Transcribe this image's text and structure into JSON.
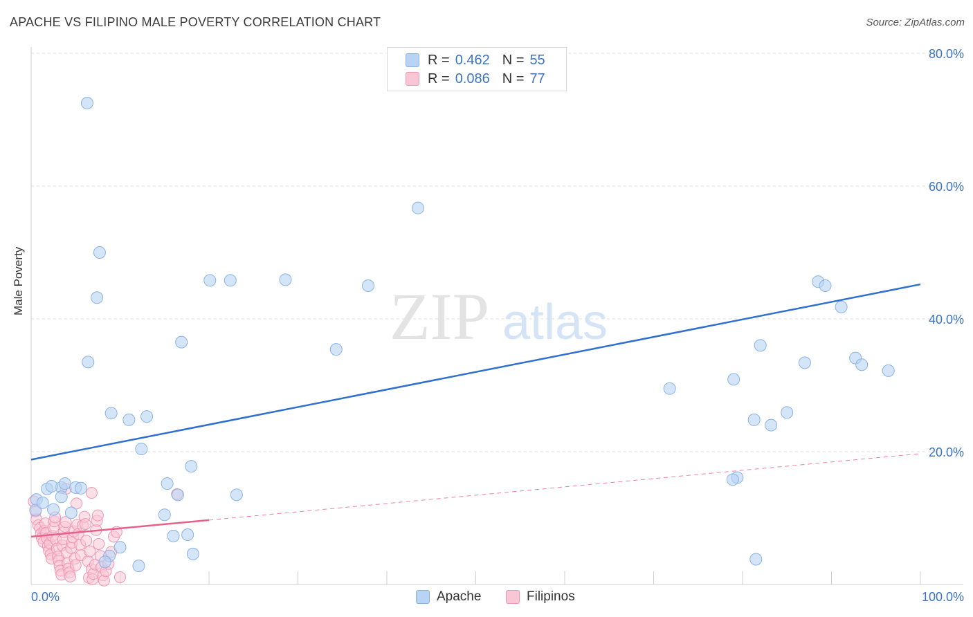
{
  "header": {
    "title": "APACHE VS FILIPINO MALE POVERTY CORRELATION CHART",
    "source": "Source: ZipAtlas.com"
  },
  "watermark": {
    "zip": "ZIP",
    "atlas": "atlas"
  },
  "legend": {
    "apache": {
      "r_label": "R =",
      "r_value": "0.462",
      "n_label": "N =",
      "n_value": "55"
    },
    "filipinos": {
      "r_label": "R =",
      "r_value": "0.086",
      "n_label": "N =",
      "n_value": "77"
    }
  },
  "bottom_legend": {
    "apache": "Apache",
    "filipinos": "Filipinos"
  },
  "colors": {
    "apache_fill": "#b8d3f3",
    "apache_stroke": "#8ab2e6",
    "apache_line": "#2f6fcf",
    "filipino_fill": "#f9c6d6",
    "filipino_stroke": "#f095b3",
    "filipino_line": "#e8608a",
    "tick_text": "#3a72c8",
    "grid": "#dcdcdc"
  },
  "chart_data": {
    "type": "scatter",
    "title": "APACHE VS FILIPINO MALE POVERTY CORRELATION CHART",
    "xlabel": "",
    "ylabel": "Male Poverty",
    "xlim": [
      0,
      100
    ],
    "ylim": [
      0,
      80
    ],
    "x_tick_labels": [
      "0.0%",
      "100.0%"
    ],
    "y_ticks": [
      20,
      40,
      60,
      80
    ],
    "y_tick_labels": [
      "20.0%",
      "40.0%",
      "60.0%",
      "80.0%"
    ],
    "series": [
      {
        "name": "Apache",
        "r": 0.462,
        "n": 55,
        "trend": {
          "x": [
            0,
            100
          ],
          "y": [
            18.8,
            45.2
          ]
        },
        "points": [
          [
            0.6,
            12.8
          ],
          [
            0.5,
            11.2
          ],
          [
            1.3,
            12.3
          ],
          [
            1.8,
            14.4
          ],
          [
            2.5,
            11.3
          ],
          [
            3.4,
            14.6
          ],
          [
            2.3,
            14.8
          ],
          [
            3.4,
            13.2
          ],
          [
            4.5,
            10.8
          ],
          [
            3.8,
            15.2
          ],
          [
            5.0,
            14.6
          ],
          [
            5.6,
            14.5
          ],
          [
            6.3,
            72.5
          ],
          [
            7.7,
            50.0
          ],
          [
            7.4,
            43.2
          ],
          [
            6.4,
            33.5
          ],
          [
            9.0,
            25.8
          ],
          [
            11.0,
            24.8
          ],
          [
            13.0,
            25.3
          ],
          [
            12.4,
            20.4
          ],
          [
            15.0,
            10.5
          ],
          [
            15.3,
            15.2
          ],
          [
            16.5,
            13.5
          ],
          [
            17.6,
            7.5
          ],
          [
            16.0,
            7.3
          ],
          [
            18.2,
            4.6
          ],
          [
            10.0,
            5.6
          ],
          [
            8.8,
            4.3
          ],
          [
            8.3,
            3.4
          ],
          [
            12.1,
            2.8
          ],
          [
            16.9,
            36.5
          ],
          [
            20.1,
            45.8
          ],
          [
            22.4,
            45.8
          ],
          [
            28.6,
            45.9
          ],
          [
            37.9,
            45.0
          ],
          [
            34.3,
            35.4
          ],
          [
            18.0,
            17.8
          ],
          [
            23.1,
            13.5
          ],
          [
            43.5,
            56.7
          ],
          [
            71.8,
            29.5
          ],
          [
            79.0,
            30.9
          ],
          [
            82.0,
            36.0
          ],
          [
            81.3,
            24.8
          ],
          [
            85.0,
            25.9
          ],
          [
            83.2,
            24.0
          ],
          [
            81.5,
            3.8
          ],
          [
            79.4,
            16.1
          ],
          [
            78.9,
            15.8
          ],
          [
            87.0,
            33.4
          ],
          [
            88.5,
            45.6
          ],
          [
            89.3,
            45.0
          ],
          [
            91.1,
            41.8
          ],
          [
            92.7,
            34.1
          ],
          [
            93.4,
            33.1
          ],
          [
            96.4,
            32.2
          ]
        ]
      },
      {
        "name": "Filipinos",
        "r": 0.086,
        "n": 77,
        "trend": {
          "x": [
            0,
            20
          ],
          "y": [
            7.2,
            9.7
          ],
          "dashed_extension": {
            "x": [
              20,
              100
            ],
            "y": [
              9.7,
              19.7
            ]
          }
        },
        "points": [
          [
            0.3,
            12.5
          ],
          [
            0.5,
            11.0
          ],
          [
            0.6,
            9.8
          ],
          [
            0.8,
            8.9
          ],
          [
            1.0,
            8.5
          ],
          [
            1.1,
            7.6
          ],
          [
            1.2,
            7.0
          ],
          [
            1.4,
            6.4
          ],
          [
            1.5,
            8.1
          ],
          [
            1.6,
            9.2
          ],
          [
            1.7,
            7.8
          ],
          [
            1.8,
            6.9
          ],
          [
            1.9,
            5.8
          ],
          [
            2.0,
            5.1
          ],
          [
            2.1,
            6.2
          ],
          [
            2.2,
            4.5
          ],
          [
            2.3,
            3.9
          ],
          [
            2.4,
            7.3
          ],
          [
            2.5,
            8.6
          ],
          [
            2.6,
            9.5
          ],
          [
            2.7,
            10.1
          ],
          [
            2.8,
            6.7
          ],
          [
            2.9,
            5.4
          ],
          [
            3.0,
            4.2
          ],
          [
            3.1,
            3.6
          ],
          [
            3.2,
            2.8
          ],
          [
            3.3,
            2.1
          ],
          [
            3.4,
            1.5
          ],
          [
            3.5,
            5.9
          ],
          [
            3.6,
            6.8
          ],
          [
            3.7,
            7.9
          ],
          [
            3.8,
            8.7
          ],
          [
            3.9,
            9.4
          ],
          [
            4.0,
            4.8
          ],
          [
            4.1,
            3.2
          ],
          [
            4.2,
            2.4
          ],
          [
            4.3,
            1.8
          ],
          [
            4.4,
            1.2
          ],
          [
            4.5,
            5.5
          ],
          [
            4.6,
            6.3
          ],
          [
            4.7,
            7.1
          ],
          [
            4.8,
            8.0
          ],
          [
            4.9,
            3.9
          ],
          [
            5.0,
            2.9
          ],
          [
            5.1,
            12.2
          ],
          [
            5.2,
            9.0
          ],
          [
            5.3,
            7.6
          ],
          [
            5.5,
            6.0
          ],
          [
            5.6,
            4.4
          ],
          [
            5.8,
            8.9
          ],
          [
            6.0,
            10.2
          ],
          [
            6.1,
            9.1
          ],
          [
            6.2,
            6.6
          ],
          [
            6.4,
            3.5
          ],
          [
            6.5,
            1.0
          ],
          [
            6.6,
            5.0
          ],
          [
            6.8,
            2.3
          ],
          [
            6.9,
            0.8
          ],
          [
            7.0,
            1.6
          ],
          [
            7.2,
            3.0
          ],
          [
            7.3,
            8.2
          ],
          [
            7.4,
            9.6
          ],
          [
            7.5,
            10.4
          ],
          [
            7.6,
            6.1
          ],
          [
            7.8,
            4.3
          ],
          [
            7.9,
            2.6
          ],
          [
            8.1,
            1.4
          ],
          [
            8.2,
            0.6
          ],
          [
            8.4,
            2.0
          ],
          [
            8.7,
            3.1
          ],
          [
            9.0,
            4.9
          ],
          [
            9.3,
            7.2
          ],
          [
            9.6,
            7.9
          ],
          [
            10.0,
            1.1
          ],
          [
            3.9,
            14.4
          ],
          [
            6.8,
            13.8
          ],
          [
            16.4,
            13.6
          ]
        ]
      }
    ]
  },
  "axes": {
    "y_label": "Male Poverty"
  }
}
